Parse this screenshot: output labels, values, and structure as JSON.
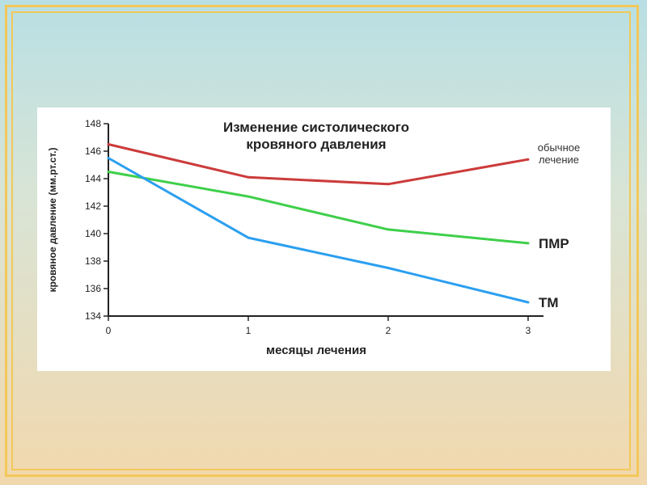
{
  "chart_data": {
    "type": "line",
    "title_lines": [
      "Изменение систолического",
      "кровяного давления"
    ],
    "xlabel": "месяцы лечения",
    "ylabel": "кровяное давление (мм.рт.ст.)",
    "x": [
      0,
      1,
      2,
      3
    ],
    "xticks": [
      "0",
      "1",
      "2",
      "3"
    ],
    "ylim": [
      134,
      148
    ],
    "yticks": [
      "134",
      "136",
      "138",
      "140",
      "142",
      "144",
      "146",
      "148"
    ],
    "grid": false,
    "series": [
      {
        "name_lines": [
          "обычное",
          "лечение"
        ],
        "color": "#cc3b3b",
        "values": [
          146.5,
          144.1,
          143.6,
          145.4
        ]
      },
      {
        "name_lines": [
          "ПМР"
        ],
        "color": "#3ecf4a",
        "values": [
          144.5,
          142.7,
          140.3,
          139.3
        ]
      },
      {
        "name_lines": [
          "ТМ"
        ],
        "color": "#2b9ff0",
        "values": [
          145.5,
          139.7,
          137.5,
          135.0
        ]
      }
    ]
  }
}
